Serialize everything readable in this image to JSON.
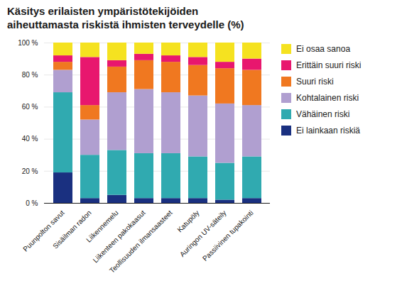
{
  "chart_data": {
    "type": "bar",
    "title": "Käsitys erilaisten ympäristötekijöiden\naiheuttamasta riskistä ihmisten terveydelle (%)",
    "categories": [
      "Puunpolton savut",
      "Sisäilman radon",
      "Liikennemelu",
      "Liikenteen pakokaasut",
      "Teollisuuden ilmansaasteet",
      "Katupöly",
      "Auringon UV-säteily",
      "Passiivinen tupakointi"
    ],
    "series": [
      {
        "name": "Ei lainkaan riskiä",
        "color": "#1a3080",
        "values": [
          19,
          3,
          5,
          3,
          3,
          3,
          2,
          3
        ]
      },
      {
        "name": "Vähäinen riski",
        "color": "#30aab0",
        "values": [
          50,
          27,
          28,
          28,
          28,
          26,
          23,
          26
        ]
      },
      {
        "name": "Kohtalainen riski",
        "color": "#b09fd0",
        "values": [
          14,
          22,
          36,
          40,
          38,
          38,
          37,
          32
        ]
      },
      {
        "name": "Suuri riski",
        "color": "#f07820",
        "values": [
          5,
          9,
          16,
          18,
          19,
          19,
          22,
          22
        ]
      },
      {
        "name": "Erittäin suuri riski",
        "color": "#e8176e",
        "values": [
          4,
          30,
          4,
          4,
          4,
          5,
          4,
          7
        ]
      },
      {
        "name": "Ei osaa sanoa",
        "color": "#f5e220",
        "values": [
          8,
          9,
          11,
          7,
          8,
          9,
          12,
          10
        ]
      }
    ],
    "stacked": true,
    "ylim": [
      0,
      100
    ],
    "yticks": [
      {
        "value": 0,
        "label": "0 %"
      },
      {
        "value": 20,
        "label": "20 %"
      },
      {
        "value": 40,
        "label": "40 %"
      },
      {
        "value": 60,
        "label": "60 %"
      },
      {
        "value": 80,
        "label": "80 %"
      },
      {
        "value": 100,
        "label": "100 %"
      }
    ],
    "grid": true,
    "legend": "right"
  }
}
